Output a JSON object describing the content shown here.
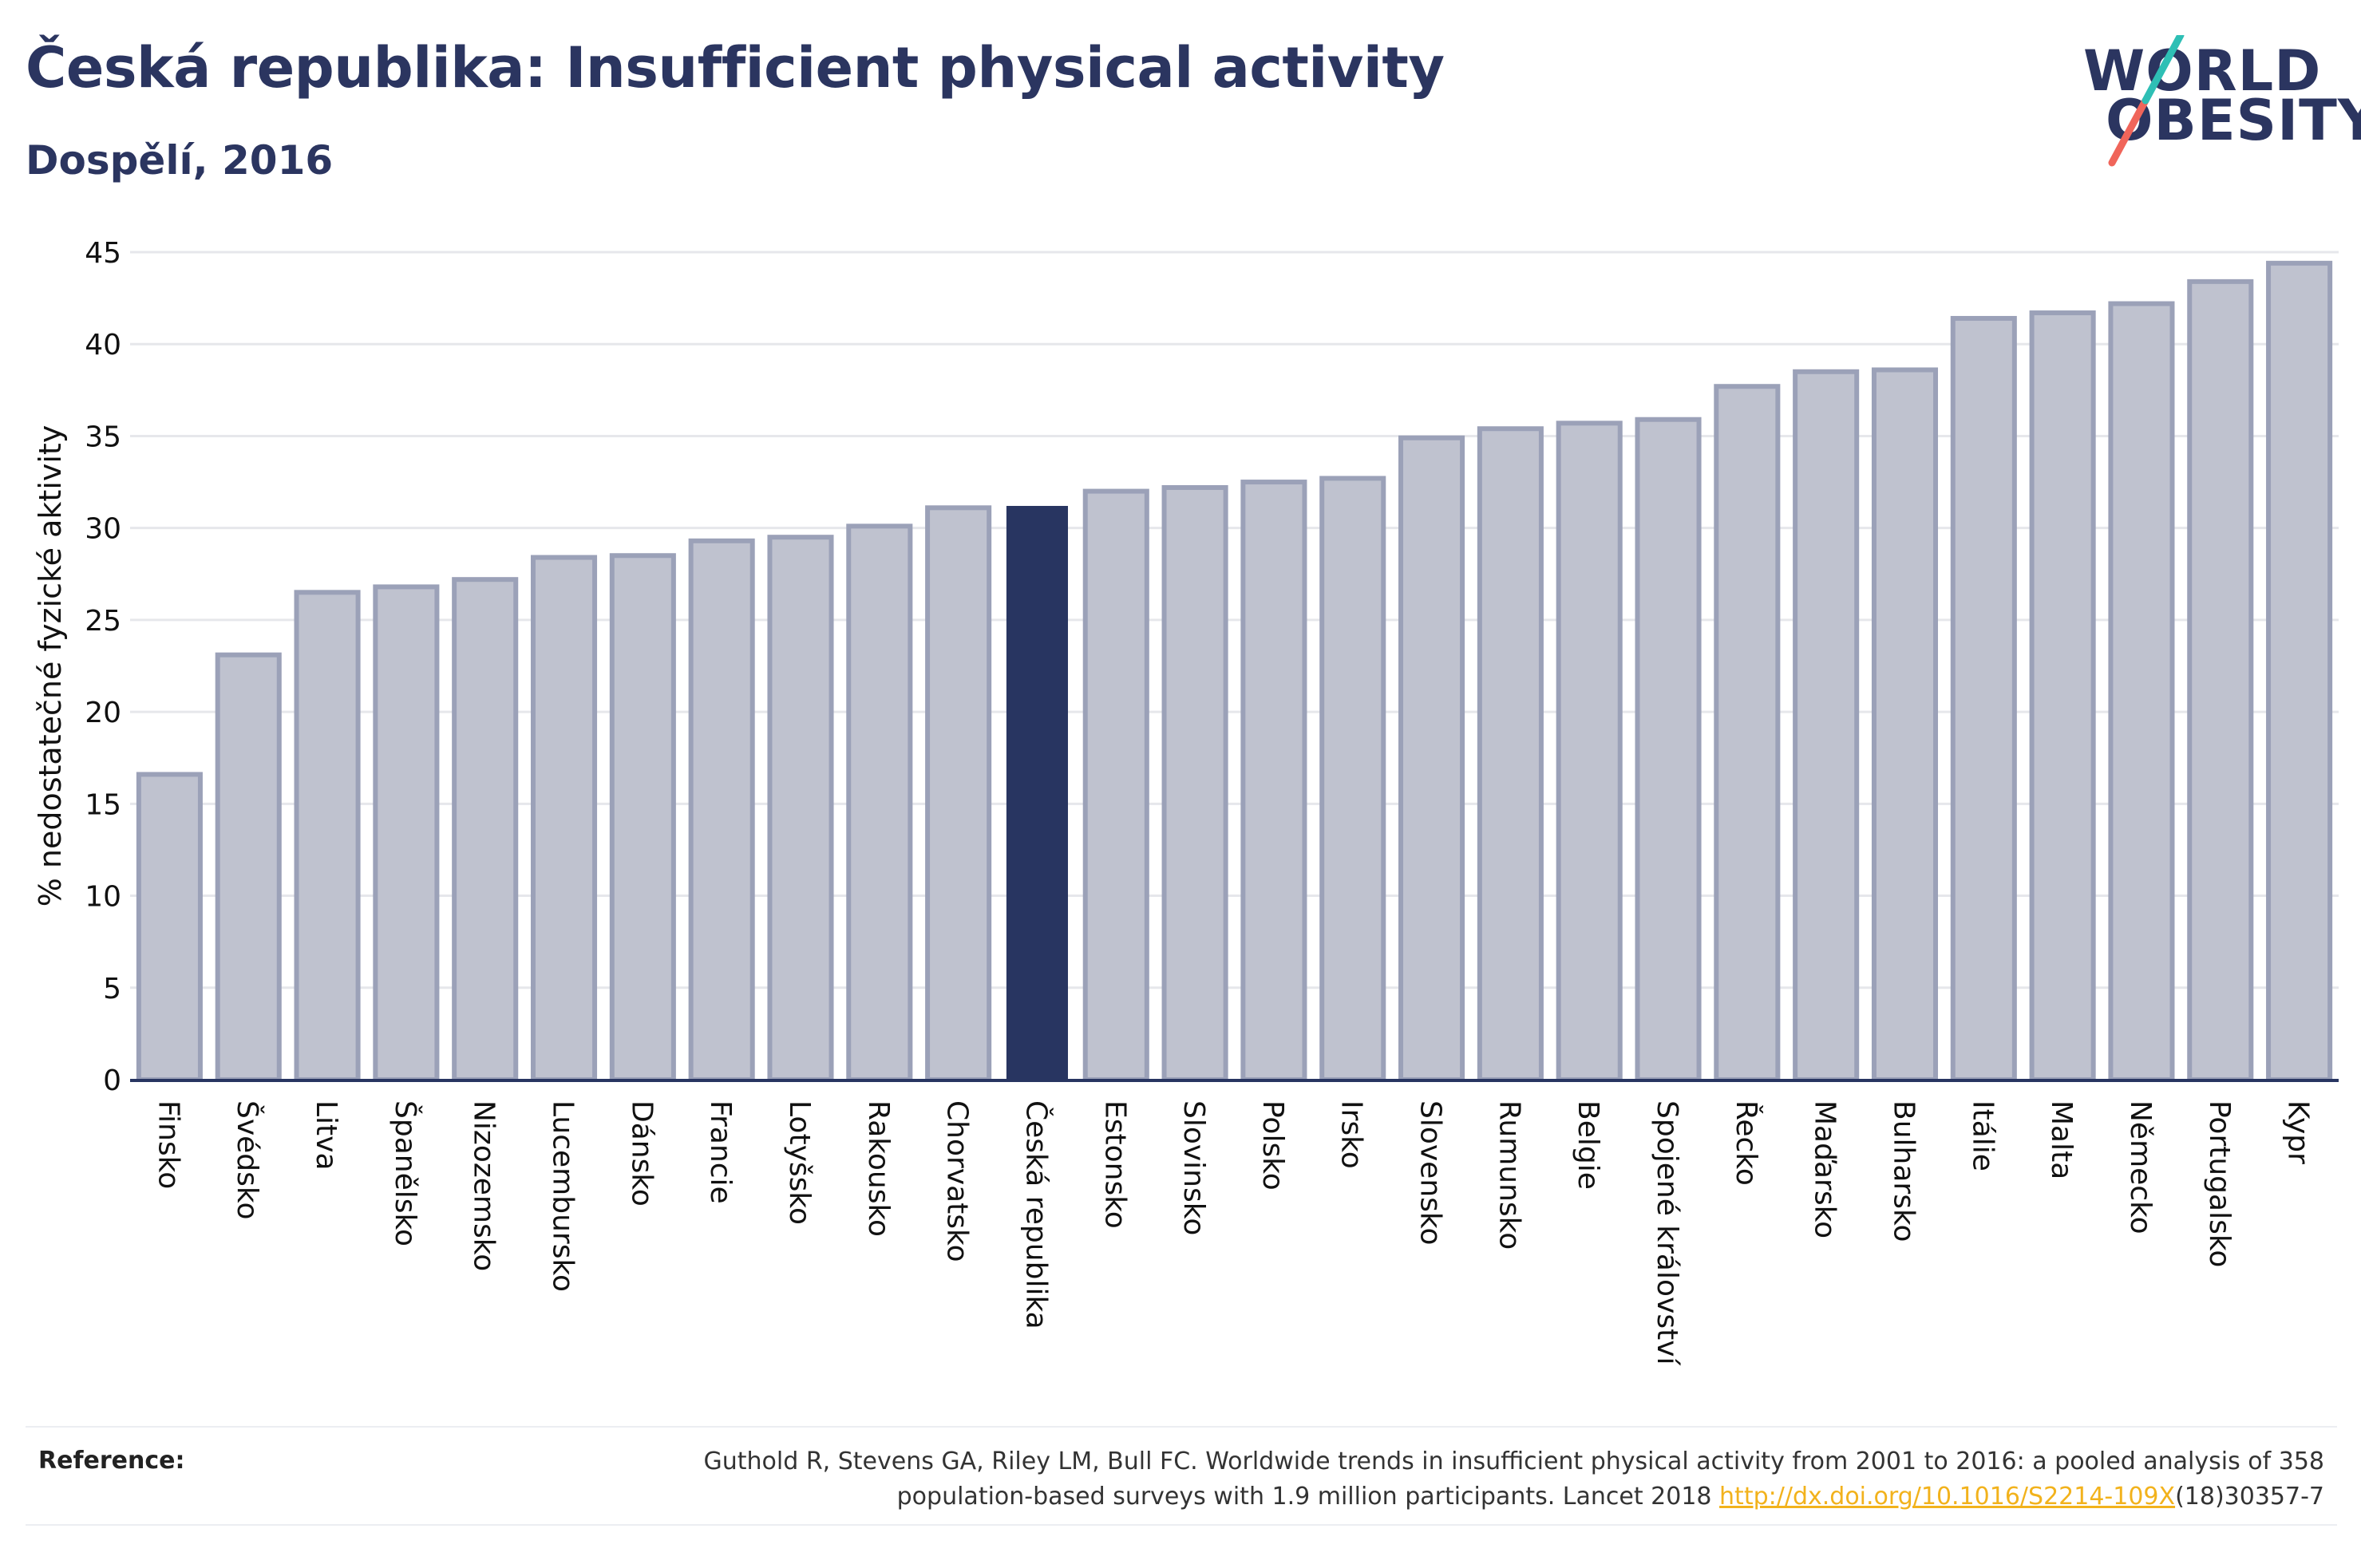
{
  "header": {
    "title": "Česká republika: Insufficient physical activity",
    "subtitle": "Dospělí, 2016"
  },
  "logo": {
    "line1": "WORLD",
    "line2": "OBESITY",
    "colors": {
      "text": "#2b3560",
      "slash_top": "#2ebfb5",
      "slash_bottom": "#f0655a"
    }
  },
  "colors": {
    "highlight_bar": "#283561",
    "other_bar_fill": "#bfc2cf",
    "other_bar_stroke": "#9ba1b8",
    "grid": "#e6e7eb",
    "axis": "#283561",
    "link": "#f2b21c"
  },
  "chart_data": {
    "type": "bar",
    "ylabel": "% nedostatečné fyzické aktivity",
    "xlabel": "",
    "ylim": [
      0,
      45
    ],
    "yticks": [
      0,
      5,
      10,
      15,
      20,
      25,
      30,
      35,
      40,
      45
    ],
    "grid": true,
    "highlight": "Česká republika",
    "categories": [
      "Finsko",
      "Švédsko",
      "Litva",
      "Španělsko",
      "Nizozemsko",
      "Lucembursko",
      "Dánsko",
      "Francie",
      "Lotyšsko",
      "Rakousko",
      "Chorvatsko",
      "Česká republika",
      "Estonsko",
      "Slovinsko",
      "Polsko",
      "Irsko",
      "Slovensko",
      "Rumunsko",
      "Belgie",
      "Spojené království",
      "Řecko",
      "Maďarsko",
      "Bulharsko",
      "Itálie",
      "Malta",
      "Německo",
      "Portugalsko",
      "Kypr"
    ],
    "values": [
      16.6,
      23.1,
      26.5,
      26.8,
      27.2,
      28.4,
      28.5,
      29.3,
      29.5,
      30.1,
      31.1,
      31.2,
      32.0,
      32.2,
      32.5,
      32.7,
      34.9,
      35.4,
      35.7,
      35.9,
      37.7,
      38.5,
      38.6,
      41.4,
      41.7,
      42.2,
      43.4,
      44.4
    ]
  },
  "reference": {
    "label": "Reference:",
    "text_line1": "Guthold R, Stevens GA, Riley LM, Bull FC. Worldwide trends in insufficient physical activity from 2001 to 2016: a pooled analysis of 358",
    "text_line2_before": "population-based surveys with 1.9 million participants. Lancet 2018 ",
    "link": "http://dx.doi.org/10.1016/S2214-109X",
    "text_line2_after": "(18)30357-7"
  }
}
